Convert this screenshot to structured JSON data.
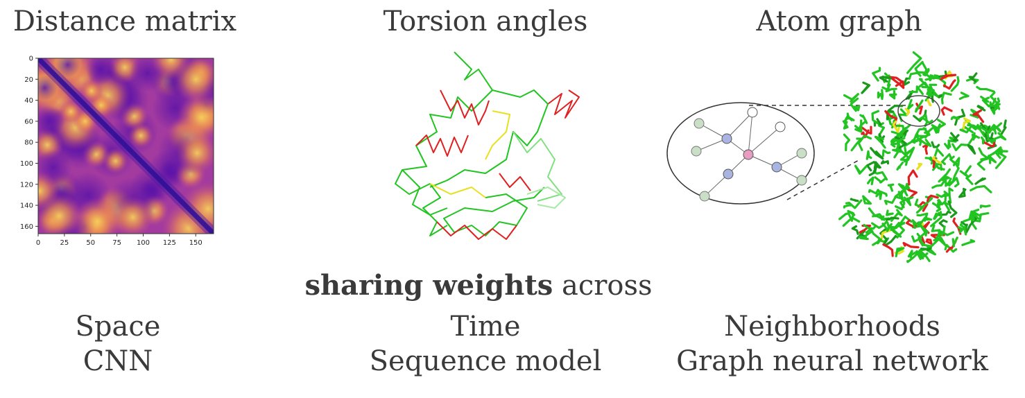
{
  "titles": {
    "distance": "Distance matrix",
    "torsion": "Torsion angles",
    "atom": "Atom graph"
  },
  "heatmap": {
    "y_ticks": [
      "0",
      "20",
      "40",
      "60",
      "80",
      "100",
      "120",
      "140",
      "160"
    ],
    "x_ticks": [
      "0",
      "25",
      "50",
      "75",
      "100",
      "125",
      "150"
    ],
    "colormap": [
      "#0d0887",
      "#7e03a8",
      "#cc4778",
      "#f89540",
      "#f0f921"
    ]
  },
  "sharing": {
    "bold": "sharing weights",
    "rest": "across"
  },
  "columns": {
    "space": "Space",
    "space_model": "CNN",
    "time": "Time",
    "time_model": "Sequence model",
    "neigh": "Neighborhoods",
    "neigh_model": "Graph neural network"
  },
  "colors": {
    "helix": "#e02020",
    "strand": "#e8e020",
    "coil": "#22c422",
    "node_blue": "#a9b4e0",
    "node_pink": "#e79cc0",
    "node_green": "#c9dfc6"
  }
}
